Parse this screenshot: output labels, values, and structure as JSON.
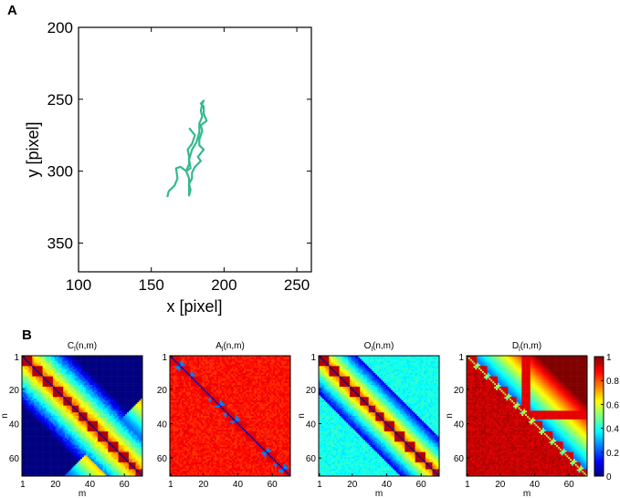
{
  "panel_labels": {
    "a": "A",
    "b": "B"
  },
  "chart_data": [
    {
      "type": "line",
      "panel": "A",
      "xlabel": "x [pixel]",
      "ylabel": "y [pixel]",
      "xlim": [
        100,
        260
      ],
      "ylim": [
        200,
        370
      ],
      "y_reversed": true,
      "xticks": [
        100,
        150,
        200,
        250
      ],
      "yticks": [
        200,
        250,
        300,
        350
      ],
      "color": "#35b98a",
      "grid": false,
      "series": [
        {
          "name": "trajectory",
          "x": [
            161,
            162,
            166,
            168,
            167,
            170,
            174,
            177,
            176,
            178,
            181,
            183,
            183,
            185,
            184,
            185,
            186,
            184,
            186,
            186,
            188,
            184,
            185,
            183,
            183,
            186,
            182,
            184,
            180,
            178,
            178,
            176,
            177,
            176,
            176,
            174,
            176,
            176,
            175,
            178,
            180,
            176
          ],
          "y": [
            318,
            314,
            310,
            305,
            298,
            297,
            300,
            298,
            292,
            285,
            280,
            273,
            267,
            262,
            258,
            253,
            251,
            253,
            255,
            260,
            265,
            268,
            272,
            278,
            282,
            285,
            290,
            293,
            297,
            301,
            305,
            309,
            313,
            317,
            305,
            300,
            295,
            290,
            285,
            281,
            275,
            270
          ]
        }
      ]
    },
    {
      "type": "heatmap",
      "panel": "B",
      "title": "C_l(n,m)",
      "title_main": "C",
      "title_sub": "l",
      "title_rest": "(n,m)",
      "xlabel": "m",
      "ylabel": "n",
      "size": 70,
      "xticks": [
        1,
        20,
        40,
        60
      ],
      "yticks": [
        1,
        20,
        40,
        60
      ],
      "clim": [
        0,
        1
      ]
    },
    {
      "type": "heatmap",
      "panel": "B",
      "title": "A_l(n,m)",
      "title_main": "A",
      "title_sub": "l",
      "title_rest": "(n,m)",
      "xlabel": "",
      "ylabel": "",
      "size": 70,
      "xticks": [
        1,
        20,
        40,
        60
      ],
      "yticks": [
        1,
        20,
        40,
        60
      ],
      "clim": [
        0,
        1
      ]
    },
    {
      "type": "heatmap",
      "panel": "B",
      "title": "O_l(n,m)",
      "title_main": "O",
      "title_sub": "l",
      "title_rest": "(n,m)",
      "xlabel": "m",
      "ylabel": "n",
      "size": 70,
      "xticks": [
        1,
        20,
        40,
        60
      ],
      "yticks": [
        1,
        20,
        40,
        60
      ],
      "clim": [
        0,
        1
      ]
    },
    {
      "type": "heatmap",
      "panel": "B",
      "title": "D_l(n,m)",
      "title_main": "D",
      "title_sub": "l",
      "title_rest": "(n,m)",
      "xlabel": "m",
      "ylabel": "n",
      "size": 70,
      "xticks": [
        1,
        20,
        40,
        60
      ],
      "yticks": [
        1,
        20,
        40,
        60
      ],
      "clim": [
        0,
        1
      ]
    }
  ],
  "colorbar": {
    "ticks": [
      0,
      0.2,
      0.4,
      0.6,
      0.8,
      1
    ],
    "tick_labels": [
      "0",
      "0.2",
      "0.4",
      "0.6",
      "0.8",
      "1"
    ],
    "colormap": "jet"
  }
}
